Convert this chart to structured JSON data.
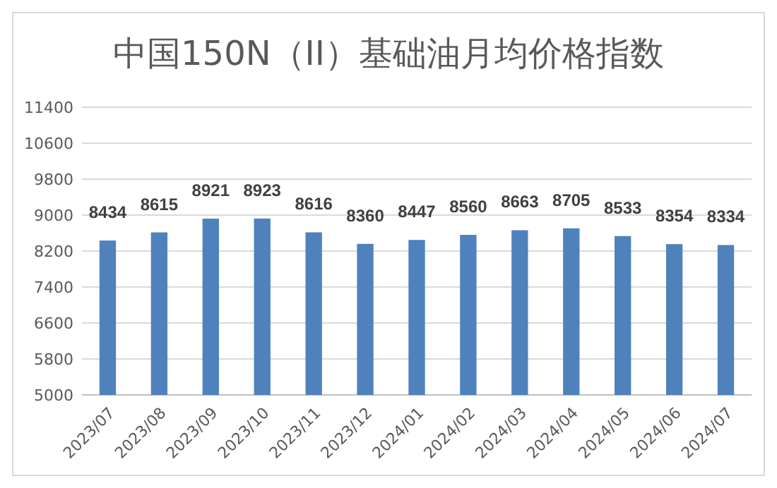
{
  "chart_data": {
    "type": "bar",
    "title": "中国150N（II）基础油月均价格指数",
    "categories": [
      "2023/07",
      "2023/08",
      "2023/09",
      "2023/10",
      "2023/11",
      "2023/12",
      "2024/01",
      "2024/02",
      "2024/03",
      "2024/04",
      "2024/05",
      "2024/06",
      "2024/07"
    ],
    "values": [
      8434,
      8615,
      8921,
      8923,
      8616,
      8360,
      8447,
      8560,
      8663,
      8705,
      8533,
      8354,
      8334
    ],
    "color": "#4f81bd",
    "ylim": [
      5000,
      11400
    ],
    "yticks": [
      5000,
      5800,
      6600,
      7400,
      8200,
      9000,
      9800,
      10600,
      11400
    ],
    "grid": "y",
    "data_labels": true
  }
}
